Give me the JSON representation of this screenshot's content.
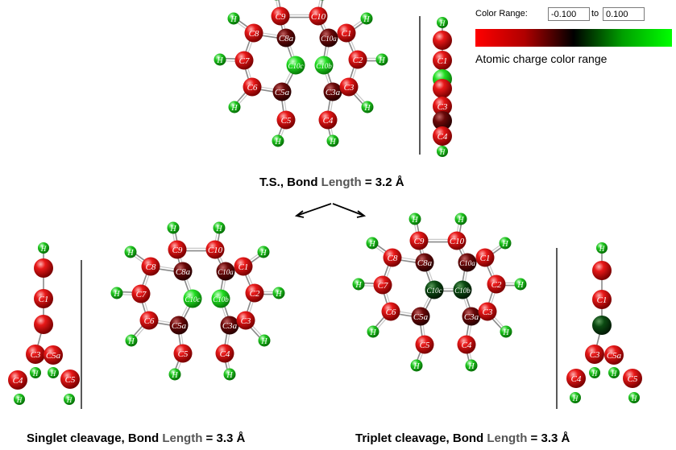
{
  "panels": {
    "ts": {
      "caption_main": "T.S., Bond ",
      "caption_highlight": "Length",
      "caption_tail": " = 3.2 Å",
      "carbon_labels": [
        "C9",
        "C10",
        "C8",
        "C8a",
        "C10a",
        "C1",
        "C7",
        "C10c",
        "C10b",
        "C2",
        "C6",
        "C5a",
        "C3a",
        "C3",
        "C5",
        "C4"
      ],
      "side_labels": [
        "C1",
        "C3",
        "C4"
      ],
      "hydrogen_label": "H"
    },
    "singlet": {
      "caption_main": "Singlet cleavage, Bond ",
      "caption_highlight": "Length",
      "caption_tail": " = 3.3 Å",
      "carbon_labels": [
        "C9",
        "C10",
        "C8",
        "C8a",
        "C10a",
        "C1",
        "C7",
        "C10c",
        "C10b",
        "C2",
        "C6",
        "C5a",
        "C3a",
        "C3",
        "C5",
        "C4"
      ],
      "side_labels": [
        "C1",
        "C3",
        "C5a",
        "C4",
        "C5"
      ],
      "hydrogen_label": "H"
    },
    "triplet": {
      "caption_main": "Triplet cleavage, Bond ",
      "caption_highlight": "Length",
      "caption_tail": " = 3.3 Å",
      "carbon_labels": [
        "C9",
        "C10",
        "C8",
        "C8a",
        "C10a",
        "C1",
        "C7",
        "C10c",
        "C10b",
        "C2",
        "C6",
        "C5a",
        "C3a",
        "C3",
        "C5",
        "C4"
      ],
      "side_labels": [
        "C1",
        "C3",
        "C5a",
        "C4",
        "C5"
      ],
      "hydrogen_label": "H"
    }
  },
  "color_range": {
    "label": "Color Range:",
    "min": "-0.100",
    "to": "to",
    "max": "0.100",
    "description": "Atomic charge color range",
    "gradient_colors": [
      "#ff0000",
      "#000000",
      "#00ff00"
    ]
  },
  "atom_colors": {
    "carbon_red": "#e01010",
    "carbon_dark": "#6a0a0a",
    "carbon_green": "#22dd22",
    "carbon_darkgreen": "#0b4a12",
    "hydrogen": "#22c822"
  }
}
